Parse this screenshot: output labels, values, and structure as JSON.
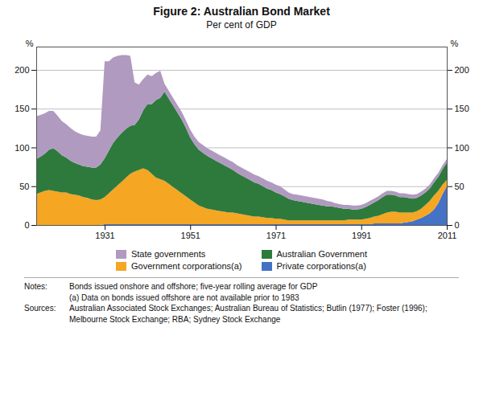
{
  "chart_data": {
    "type": "area",
    "title": "Figure 2: Australian Bond Market",
    "subtitle": "Per cent of GDP",
    "ylabel_left": "%",
    "ylabel_right": "%",
    "stacked": true,
    "grid": true,
    "legend": "bottom",
    "xlim": [
      1915,
      2011
    ],
    "ylim": [
      0,
      230
    ],
    "xticks": [
      1931,
      1951,
      1971,
      1991,
      2011
    ],
    "yticks": [
      0,
      50,
      100,
      150,
      200
    ],
    "x": [
      1915,
      1916,
      1917,
      1918,
      1919,
      1920,
      1921,
      1922,
      1923,
      1924,
      1925,
      1926,
      1927,
      1928,
      1929,
      1930,
      1931,
      1932,
      1933,
      1934,
      1935,
      1936,
      1937,
      1938,
      1939,
      1940,
      1941,
      1942,
      1943,
      1944,
      1945,
      1946,
      1947,
      1948,
      1949,
      1950,
      1951,
      1952,
      1953,
      1954,
      1955,
      1956,
      1957,
      1958,
      1959,
      1960,
      1961,
      1962,
      1963,
      1964,
      1965,
      1966,
      1967,
      1968,
      1969,
      1970,
      1971,
      1972,
      1973,
      1974,
      1975,
      1976,
      1977,
      1978,
      1979,
      1980,
      1981,
      1982,
      1983,
      1984,
      1985,
      1986,
      1987,
      1988,
      1989,
      1990,
      1991,
      1992,
      1993,
      1994,
      1995,
      1996,
      1997,
      1998,
      1999,
      2000,
      2001,
      2002,
      2003,
      2004,
      2005,
      2006,
      2007,
      2008,
      2009,
      2010,
      2011
    ],
    "series": [
      {
        "name": "Private corporations(a)",
        "color": "#4472c4",
        "values": [
          0,
          0,
          0,
          0,
          0,
          0,
          0,
          0,
          0,
          0,
          0,
          0,
          0,
          0,
          0,
          0,
          1,
          1,
          1,
          1,
          1,
          1,
          1,
          1,
          1,
          1,
          1,
          1,
          1,
          1,
          1,
          1,
          1,
          1,
          1,
          1,
          1,
          1,
          1,
          1,
          1,
          1,
          1,
          1,
          1,
          1,
          1,
          1,
          1,
          1,
          1,
          1,
          1,
          1,
          1,
          1,
          1,
          1,
          1,
          1,
          1,
          1,
          1,
          1,
          1,
          1,
          1,
          1,
          1,
          1,
          1,
          1,
          1,
          1,
          1,
          1,
          1,
          1,
          1,
          2,
          2,
          2,
          2,
          2,
          2,
          2,
          3,
          4,
          5,
          7,
          9,
          12,
          15,
          20,
          28,
          40,
          50
        ]
      },
      {
        "name": "Government corporations(a)",
        "color": "#f5a623",
        "values": [
          40,
          42,
          44,
          45,
          44,
          43,
          42,
          42,
          40,
          39,
          38,
          36,
          35,
          33,
          32,
          33,
          35,
          40,
          45,
          50,
          55,
          60,
          65,
          68,
          70,
          72,
          70,
          65,
          60,
          58,
          56,
          52,
          48,
          44,
          40,
          36,
          32,
          28,
          24,
          22,
          20,
          19,
          18,
          17,
          16,
          15,
          15,
          14,
          13,
          12,
          11,
          10,
          10,
          9,
          8,
          8,
          7,
          7,
          6,
          5,
          5,
          5,
          5,
          5,
          5,
          5,
          5,
          5,
          5,
          5,
          5,
          5,
          5,
          6,
          6,
          6,
          6,
          7,
          8,
          9,
          10,
          12,
          14,
          15,
          15,
          14,
          13,
          12,
          11,
          11,
          12,
          14,
          16,
          18,
          16,
          12,
          8
        ]
      },
      {
        "name": "Australian Government",
        "color": "#2e7a3c",
        "values": [
          45,
          46,
          48,
          52,
          55,
          52,
          48,
          45,
          43,
          41,
          40,
          40,
          40,
          41,
          42,
          45,
          50,
          55,
          60,
          62,
          63,
          63,
          62,
          60,
          65,
          75,
          85,
          90,
          100,
          105,
          115,
          110,
          105,
          100,
          95,
          88,
          80,
          75,
          72,
          70,
          68,
          66,
          64,
          62,
          60,
          58,
          55,
          52,
          50,
          48,
          46,
          44,
          42,
          40,
          38,
          36,
          34,
          32,
          30,
          28,
          26,
          25,
          24,
          23,
          22,
          21,
          20,
          19,
          18,
          18,
          17,
          16,
          15,
          14,
          13,
          13,
          14,
          15,
          17,
          18,
          20,
          22,
          23,
          22,
          21,
          20,
          20,
          19,
          18,
          17,
          17,
          16,
          16,
          17,
          18,
          20,
          22
        ]
      },
      {
        "name": "State governments",
        "color": "#b09ac0",
        "values": [
          55,
          54,
          52,
          50,
          48,
          46,
          44,
          43,
          42,
          41,
          40,
          40,
          40,
          40,
          40,
          44,
          125,
          115,
          110,
          105,
          100,
          95,
          90,
          55,
          45,
          40,
          38,
          36,
          35,
          35,
          10,
          10,
          10,
          10,
          10,
          10,
          10,
          10,
          10,
          10,
          10,
          10,
          10,
          10,
          10,
          10,
          10,
          10,
          10,
          10,
          10,
          10,
          10,
          10,
          10,
          10,
          10,
          10,
          9,
          8,
          8,
          8,
          8,
          8,
          8,
          8,
          8,
          8,
          7,
          6,
          5,
          5,
          5,
          5,
          5,
          5,
          5,
          5,
          5,
          5,
          5,
          5,
          5,
          5,
          5,
          5,
          5,
          5,
          5,
          5,
          5,
          5,
          5,
          5,
          5,
          5,
          5
        ]
      }
    ],
    "annotations": [
      {
        "label": "Notes:",
        "lines": [
          "Bonds issued onshore and offshore; five-year rolling average for GDP",
          "(a) Data on bonds issued offshore are not available prior to 1983"
        ]
      },
      {
        "label": "Sources:",
        "lines": [
          "Australian Associated Stock Exchanges; Australian Bureau of Statistics; Butlin (1977); Foster (1996);",
          "Melbourne Stock Exchange; RBA; Sydney Stock Exchange"
        ]
      }
    ]
  }
}
